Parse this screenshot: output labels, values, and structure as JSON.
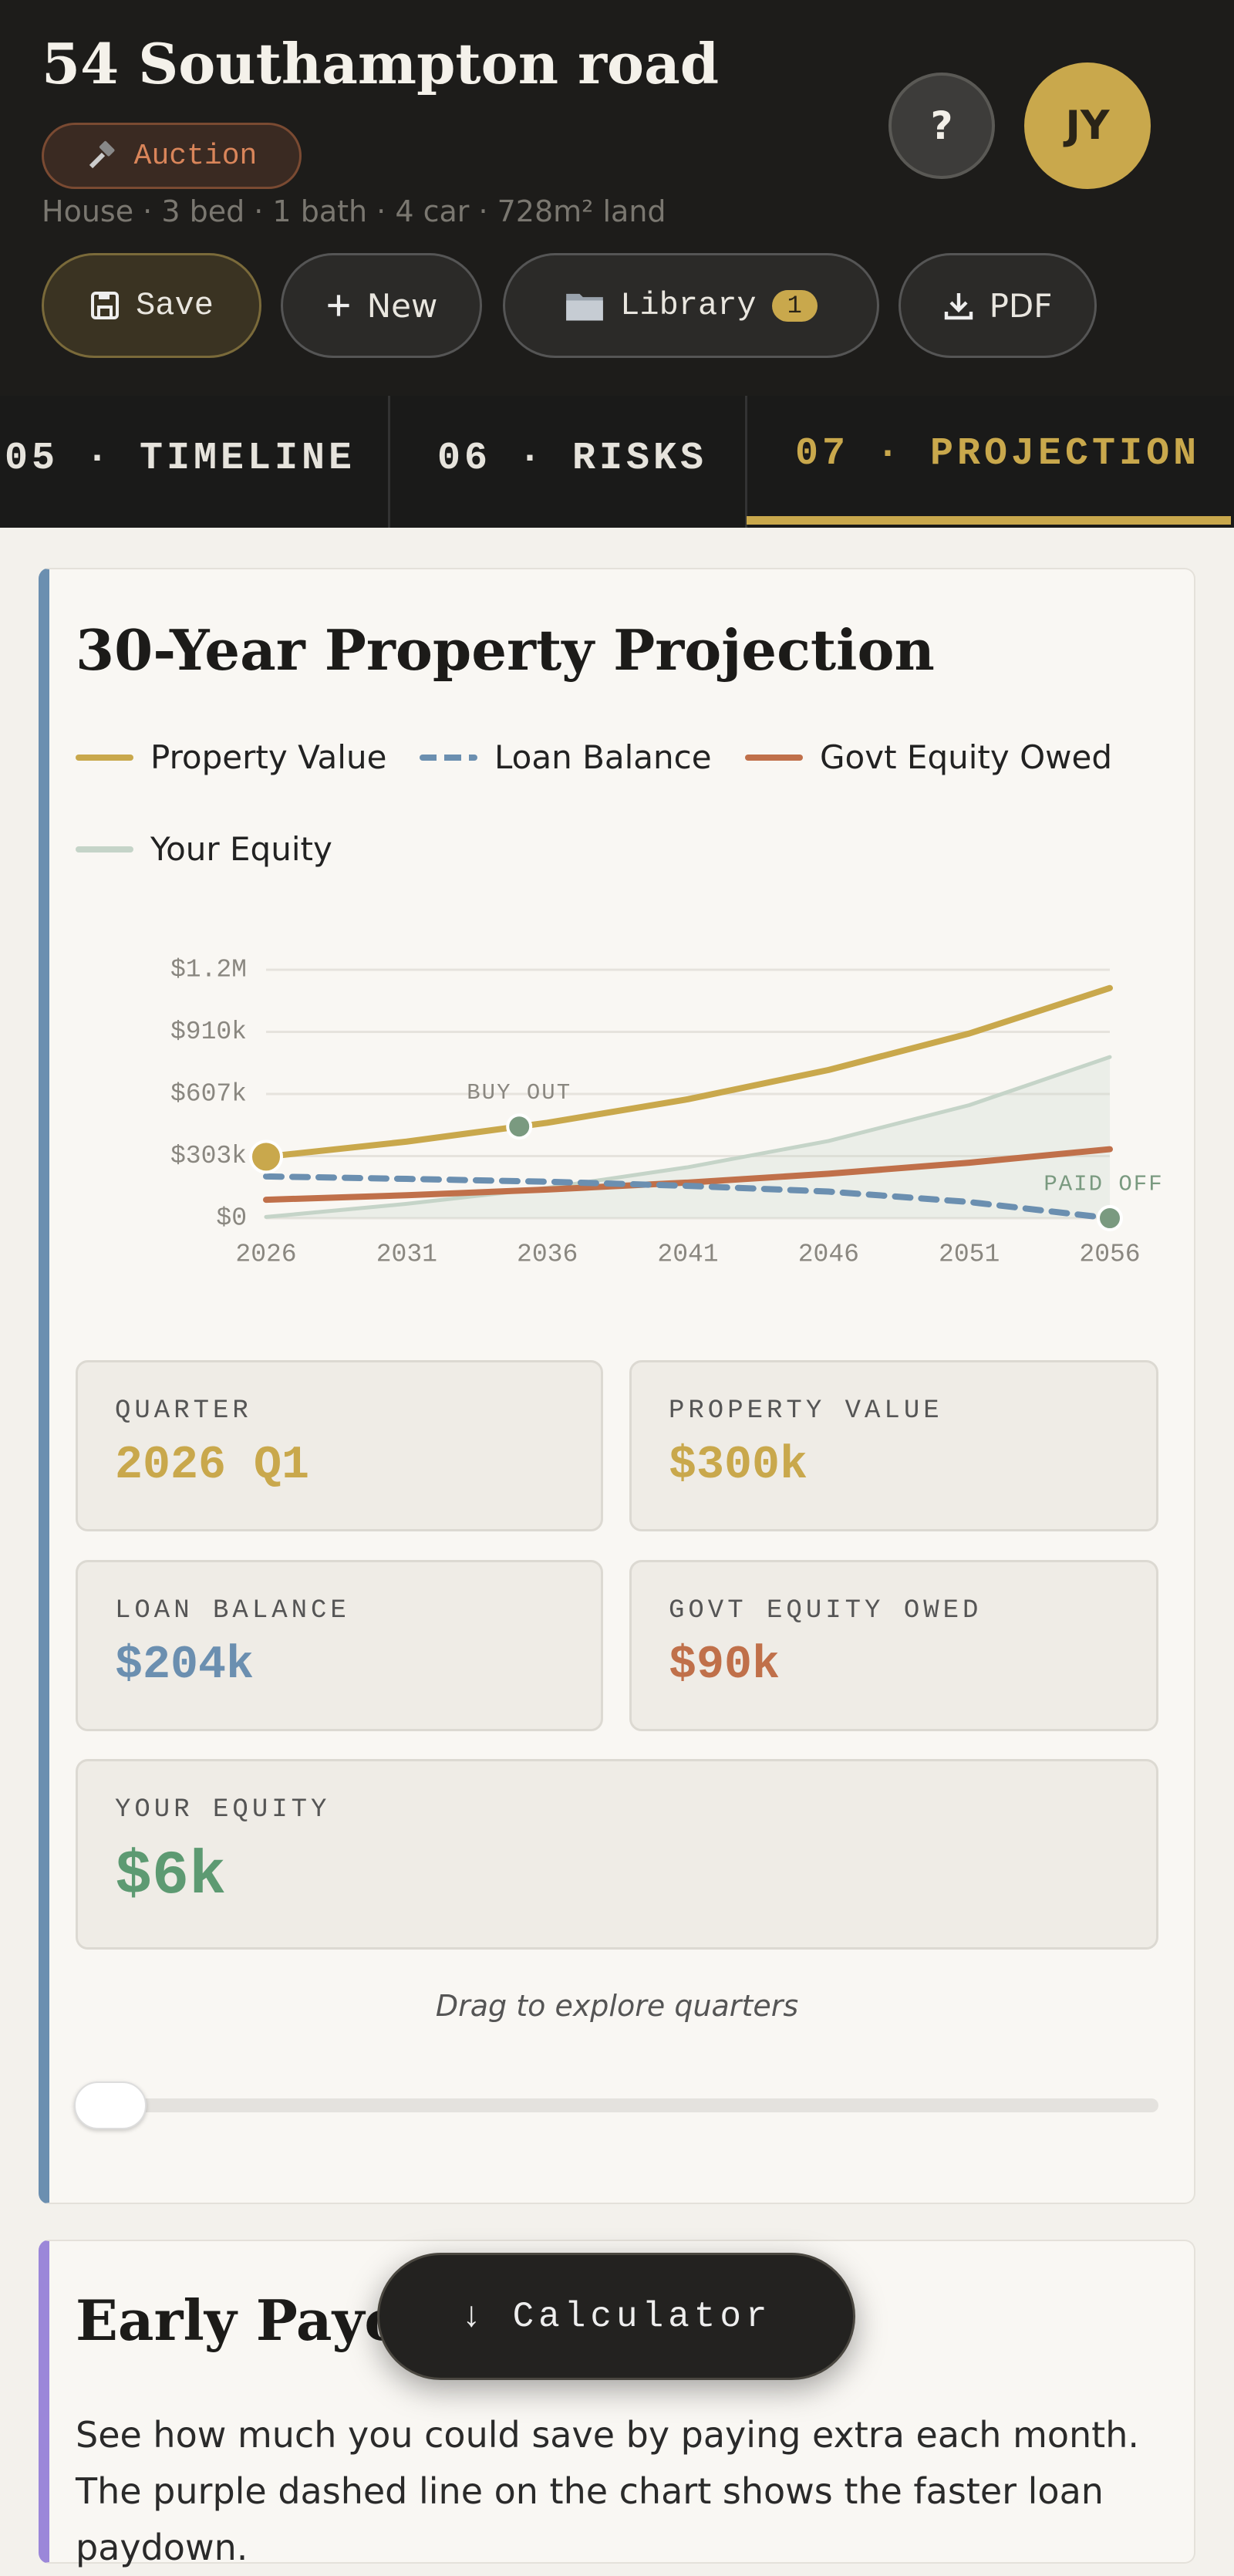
{
  "header": {
    "title": "54 Southampton road",
    "badge": "Auction",
    "meta": "House · 3 bed · 1 bath · 4 car · 728m² land",
    "buttons": [
      "Save",
      "New",
      "Library",
      "PDF"
    ],
    "library_count": 1,
    "help": "?",
    "avatar": "JY"
  },
  "tabs": [
    "05 · TIMELINE",
    "06 · RISKS",
    "07 · PROJECTION"
  ],
  "chart_data": {
    "type": "line",
    "title": "30-Year Property Projection",
    "x": [
      2026,
      2031,
      2036,
      2041,
      2046,
      2051,
      2056
    ],
    "xlim": [
      2026,
      2056
    ],
    "xticks": [
      2026,
      2031,
      2036,
      2041,
      2046,
      2051,
      2056
    ],
    "ylim": [
      0,
      1213333
    ],
    "yticks": [
      {
        "value": 0,
        "label": "$0"
      },
      {
        "value": 303333,
        "label": "$303k"
      },
      {
        "value": 606667,
        "label": "$607k"
      },
      {
        "value": 910000,
        "label": "$910k"
      },
      {
        "value": 1213333,
        "label": "$1.2M"
      }
    ],
    "grid": true,
    "series": [
      {
        "name": "Property Value",
        "color": "#c9a84c",
        "values": [
          300000,
          374000,
          466000,
          581000,
          724000,
          902000,
          1124000
        ]
      },
      {
        "name": "Loan Balance",
        "color": "#6b8fb0",
        "dashed": true,
        "values": [
          204000,
          192000,
          178000,
          158000,
          130000,
          79000,
          0
        ]
      },
      {
        "name": "Govt Equity Owed",
        "color": "#c0704a",
        "values": [
          90000,
          112000,
          140000,
          174000,
          217000,
          271000,
          337000
        ]
      },
      {
        "name": "Your Equity",
        "color": "#c5d4c8",
        "values": [
          6000,
          70000,
          148000,
          249000,
          377000,
          552000,
          787000
        ]
      }
    ],
    "annotations": [
      {
        "text": "BUY OUT",
        "x": 2035
      },
      {
        "text": "PAID OFF",
        "x": 2056
      }
    ],
    "annotation_color": "#7a9a80",
    "selected_x": 2026
  },
  "stats": [
    {
      "label": "QUARTER",
      "value": "2026 Q1",
      "color": "#c9a84c"
    },
    {
      "label": "PROPERTY VALUE",
      "value": "$300k",
      "color": "#c9a84c"
    },
    {
      "label": "LOAN BALANCE",
      "value": "$204k",
      "color": "#6b8fb0"
    },
    {
      "label": "GOVT EQUITY OWED",
      "value": "$90k",
      "color": "#c0704a"
    },
    {
      "label": "YOUR EQUITY",
      "value": "$6k",
      "color": "#5d9a72"
    }
  ],
  "hint": "Drag to explore quarters",
  "payoff": {
    "title": "Early Payoff Modelling",
    "text": "See how much you could save by paying extra each month. The purple dashed line on the chart shows the faster loan paydown."
  },
  "calculator": "↓ Calculator"
}
